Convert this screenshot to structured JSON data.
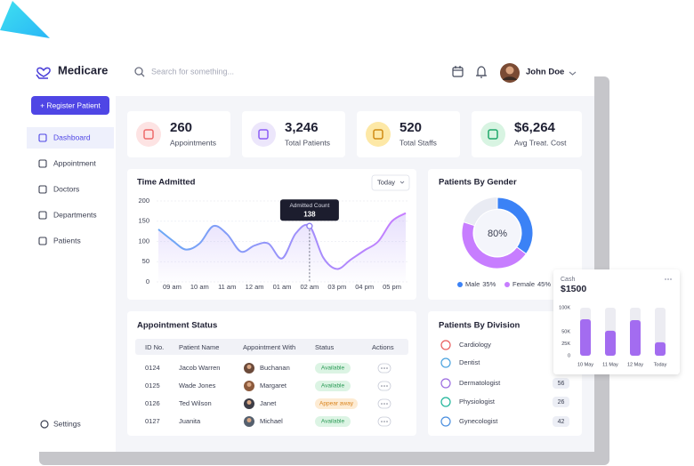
{
  "header": {
    "brand": "Medicare",
    "search_placeholder": "Search for something...",
    "user": "John Doe"
  },
  "sidebar": {
    "button": "+ Register Patient",
    "nav": [
      "Dashboard",
      "Appointment",
      "Doctors",
      "Departments",
      "Patients"
    ],
    "settings": "Settings"
  },
  "stats": [
    {
      "value": "260",
      "label": "Appointments"
    },
    {
      "value": "3,246",
      "label": "Total Patients"
    },
    {
      "value": "520",
      "label": "Total Staffs"
    },
    {
      "value": "$6,264",
      "label": "Avg Treat. Cost"
    }
  ],
  "chart_data": [
    {
      "type": "line",
      "title": "Time Admitted",
      "filter": "Today",
      "categories": [
        null,
        "09 am",
        null,
        "10 am",
        null,
        "11 am",
        null,
        "12 am",
        null,
        "01 am",
        null,
        "02 am",
        null,
        "03 pm",
        null,
        "04 pm",
        null,
        "05 pm",
        null
      ],
      "values": [
        130,
        103,
        80,
        95,
        138,
        118,
        75,
        90,
        95,
        58,
        120,
        138,
        60,
        32,
        55,
        78,
        100,
        150,
        170
      ],
      "ylim": [
        0,
        200
      ],
      "yticks": [
        0,
        50,
        100,
        150,
        200
      ],
      "grid": true,
      "colors": [
        "#6aa8f5",
        "#c77dff"
      ],
      "tooltip": {
        "title": "Admitted Count",
        "category": "02 am"
      }
    },
    {
      "type": "pie",
      "title": "Patients By Gender",
      "categories": [
        "Male",
        "Female"
      ],
      "values": [
        35,
        45
      ],
      "value_labels": [
        "35%",
        "45%"
      ],
      "colors": [
        "#3b82f6",
        "#c77dff"
      ],
      "center_label": {
        "value": 80,
        "label": "80%"
      }
    },
    {
      "type": "bar",
      "title": "Cash",
      "subtitle": "$1500",
      "categories": [
        "10 May",
        "11 May",
        "12 May",
        "Today"
      ],
      "values": [
        76000,
        52000,
        74000,
        28000
      ],
      "ylim": [
        0,
        100000
      ],
      "yticks": [
        0,
        {
          "value": 25000,
          "label": "25K"
        },
        {
          "value": 50000,
          "label": "50K"
        },
        {
          "value": 100000,
          "label": "100K"
        }
      ],
      "color": "#a36cf0"
    }
  ],
  "appointments": {
    "title": "Appointment Status",
    "columns": [
      "ID No.",
      "Patient Name",
      "Appointment With",
      "Status",
      "Actions"
    ],
    "rows": [
      [
        "0124",
        "Jacob Warren",
        "Buchanan",
        "Available"
      ],
      [
        "0125",
        "Wade Jones",
        "Margaret",
        "Available"
      ],
      [
        "0126",
        "Ted Wilson",
        "Janet",
        "Appear away"
      ],
      [
        "0127",
        "Juanita",
        "Michael",
        "Available"
      ]
    ]
  },
  "divisions": {
    "title": "Patients By Division",
    "items": [
      {
        "name": "Cardiology"
      },
      {
        "name": "Dentist"
      },
      {
        "name": "Dermatologist",
        "count": 56
      },
      {
        "name": "Physiologist",
        "count": 26
      },
      {
        "name": "Gynecologist",
        "count": 42
      }
    ]
  }
}
